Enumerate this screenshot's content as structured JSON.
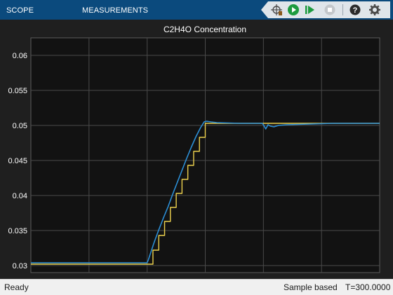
{
  "tabs": {
    "scope": "SCOPE",
    "measurements": "MEASUREMENTS"
  },
  "toolbar_icons": [
    "target-cursor-icon",
    "run-icon",
    "step-forward-icon",
    "stop-icon",
    "help-icon",
    "settings-icon"
  ],
  "status": {
    "ready": "Ready",
    "mode": "Sample based",
    "time": "T=300.0000"
  },
  "colors": {
    "accent": "#0b4a7d",
    "plot_background": "#121212",
    "grid": "#4a4a4a",
    "axis_text": "#ffffff",
    "series_setpoint": "#edd14e",
    "series_measured": "#2c8fd6"
  },
  "chart_data": {
    "type": "line",
    "title": "C2H4O Concentration",
    "xlabel": "",
    "ylabel": "",
    "xlim": [
      0,
      300
    ],
    "ylim": [
      0.029,
      0.0625
    ],
    "xticks": [
      "0",
      "50",
      "100",
      "150",
      "200",
      "250",
      "300"
    ],
    "yticks": [
      "0.03",
      "0.035",
      "0.04",
      "0.045",
      "0.05",
      "0.055",
      "0.06"
    ],
    "grid": true,
    "legend": "none",
    "series": [
      {
        "style": "step",
        "color": "#edd14e",
        "x": [
          0,
          100,
          105,
          110,
          115,
          120,
          125,
          130,
          135,
          140,
          145,
          150,
          300
        ],
        "y": [
          0.0302,
          0.0302,
          0.0322,
          0.0343,
          0.0363,
          0.0383,
          0.0403,
          0.0423,
          0.0443,
          0.0463,
          0.0483,
          0.0503,
          0.0503
        ]
      },
      {
        "style": "line",
        "color": "#2c8fd6",
        "x": [
          0,
          100,
          101,
          103,
          106,
          110,
          114,
          118,
          122,
          126,
          130,
          134,
          138,
          142,
          146,
          149,
          151,
          155,
          160,
          180,
          199,
          200,
          201,
          202,
          204,
          206,
          209,
          213,
          220,
          240,
          260,
          300
        ],
        "y": [
          0.0304,
          0.0304,
          0.0308,
          0.0318,
          0.0333,
          0.0351,
          0.0368,
          0.0384,
          0.0402,
          0.0419,
          0.0436,
          0.0453,
          0.0469,
          0.0484,
          0.0497,
          0.0505,
          0.0506,
          0.0505,
          0.0504,
          0.0503,
          0.0503,
          0.0501,
          0.0498,
          0.0495,
          0.0501,
          0.0499,
          0.0498,
          0.05,
          0.0501,
          0.0502,
          0.0503,
          0.0503
        ]
      }
    ]
  }
}
